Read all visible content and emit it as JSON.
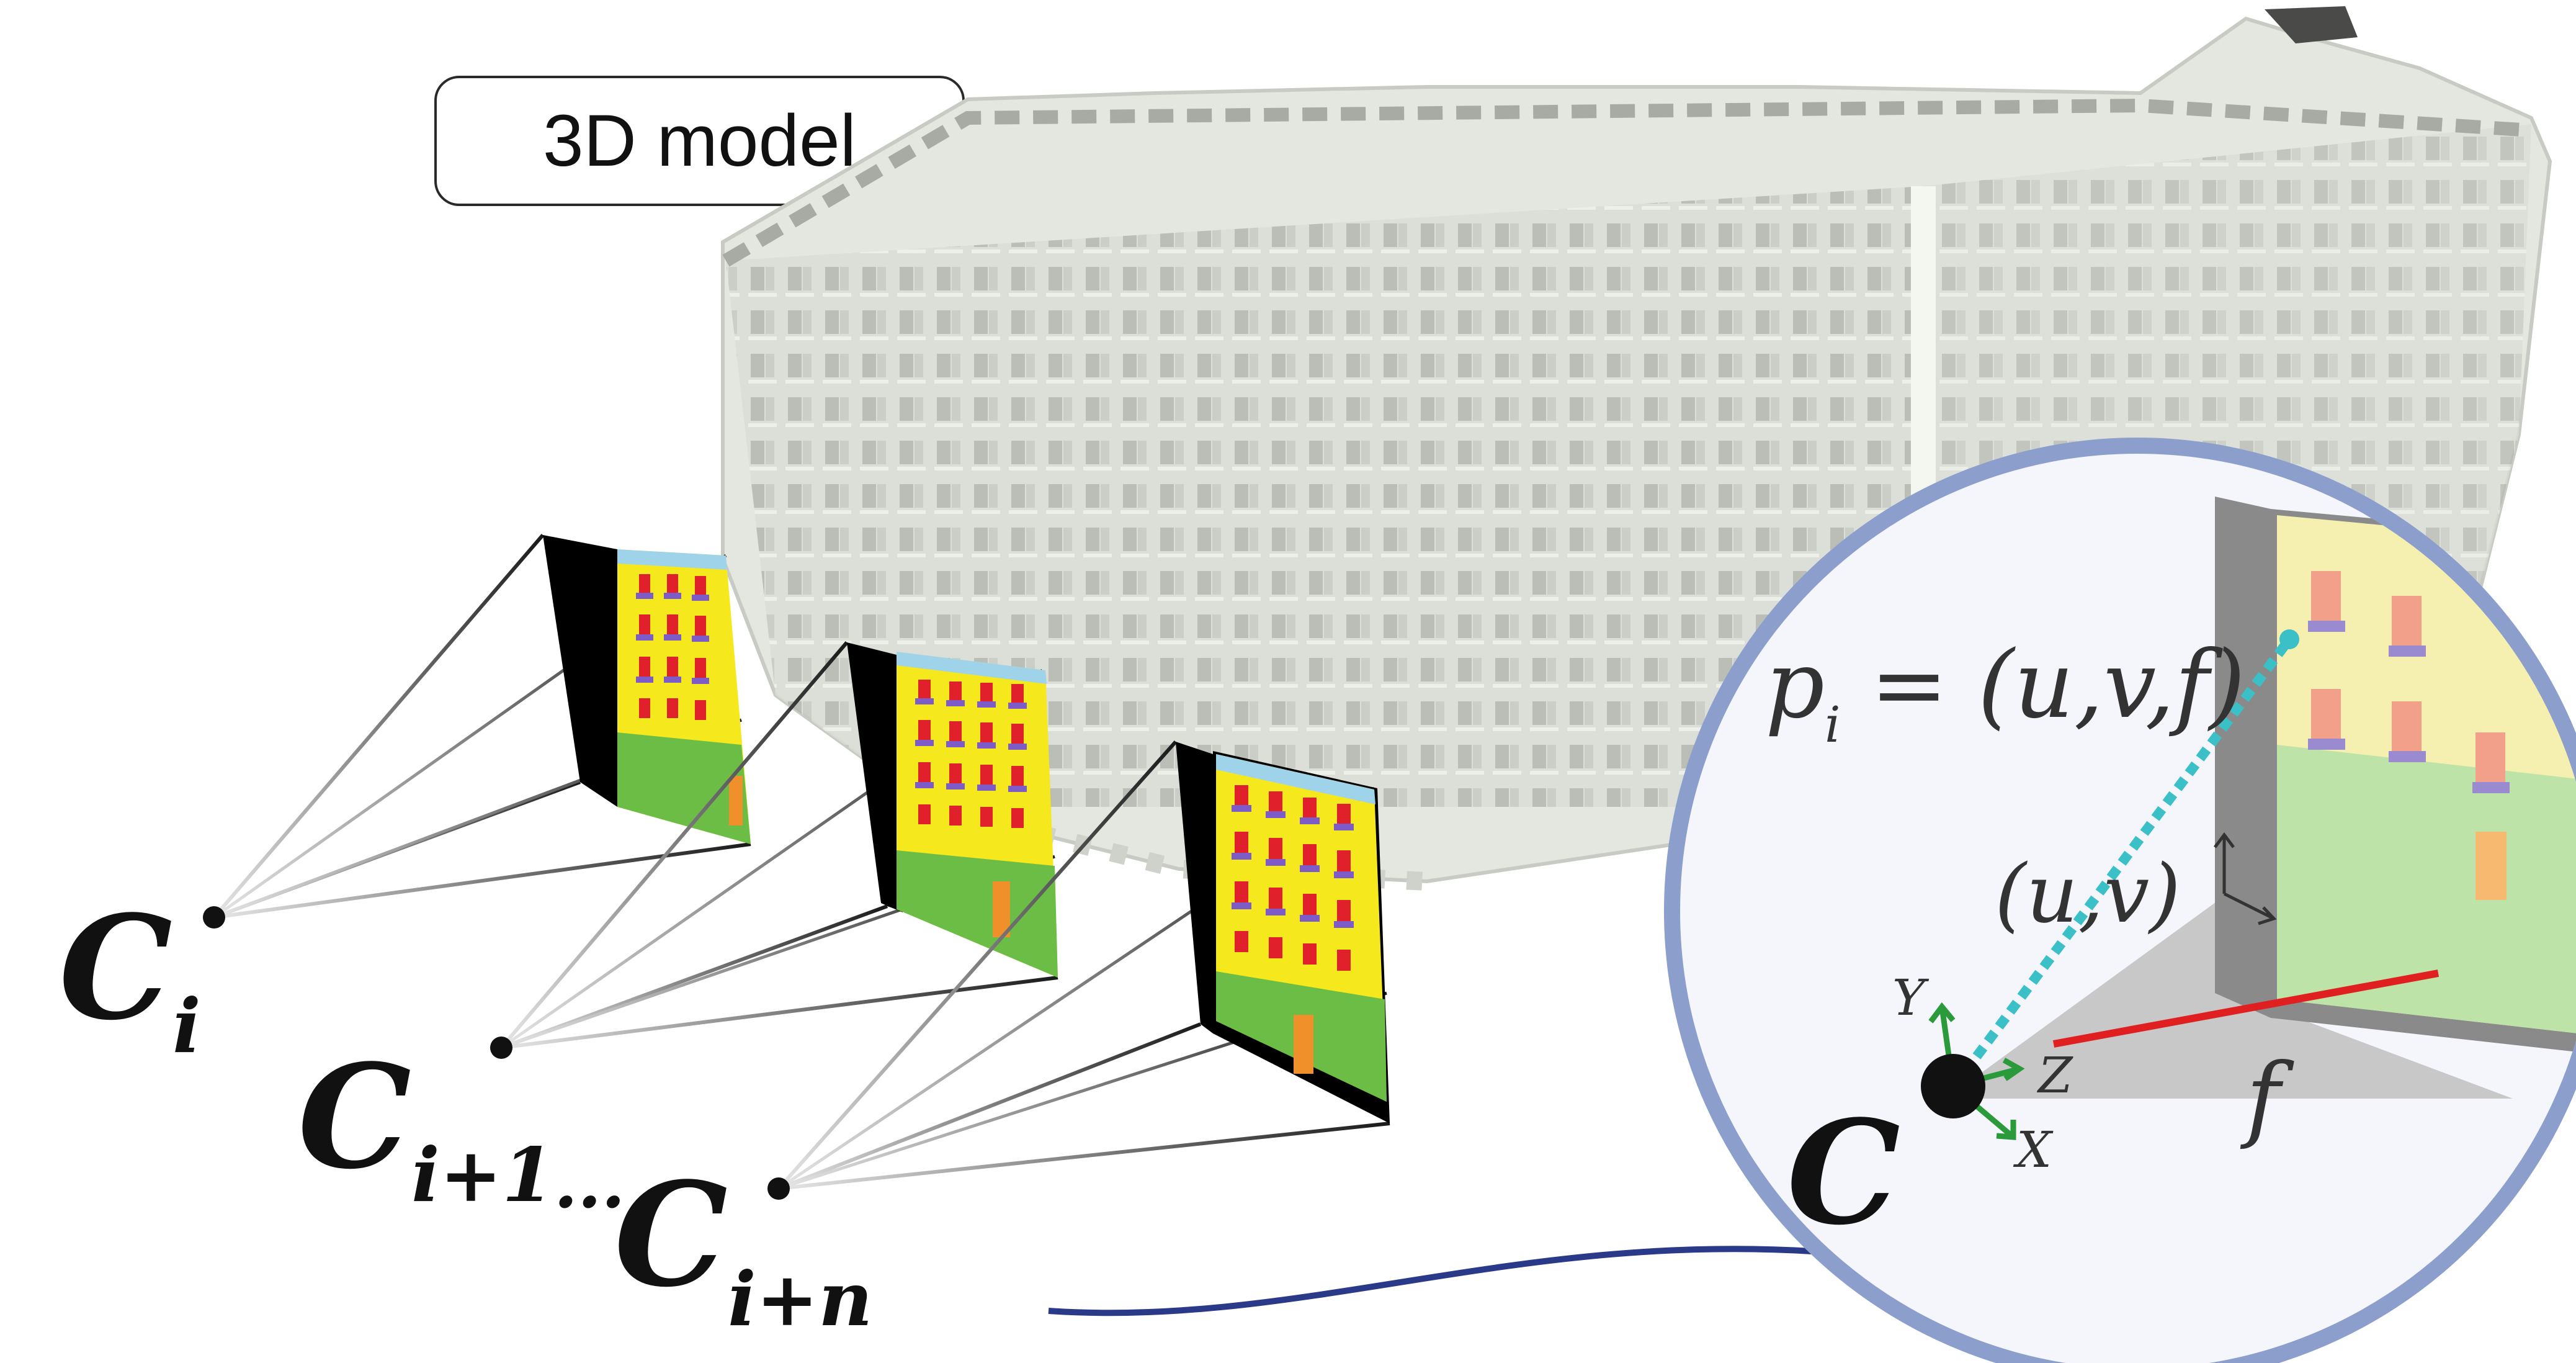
{
  "title_label": "3D model",
  "cameras": [
    {
      "symbol": "C",
      "subscript": "i"
    },
    {
      "symbol": "C",
      "subscript": "i+1",
      "suffix": "..."
    },
    {
      "symbol": "C",
      "subscript": "i+n"
    }
  ],
  "inset": {
    "camera_symbol": "C",
    "point_label_main": "p",
    "point_label_sub": "i",
    "point_label_eq": " = (u,v,f)",
    "pixel_label": "(u,v)",
    "axis_x": "X",
    "axis_y": "Y",
    "axis_z": "Z",
    "focal_label": "f"
  },
  "colors": {
    "facade_yellow": "#f5e81c",
    "window_red": "#e0202a",
    "sill_purple": "#7d5cc8",
    "ground_green": "#6cbd45",
    "door_orange": "#f0902a",
    "sky_blue": "#9fd3ea",
    "inset_border": "#8c9fcc",
    "ray_cyan": "#3cc0c8",
    "focal_red": "#e02020",
    "axis_green": "#2a9a3a",
    "connector_navy": "#2a3a88"
  }
}
